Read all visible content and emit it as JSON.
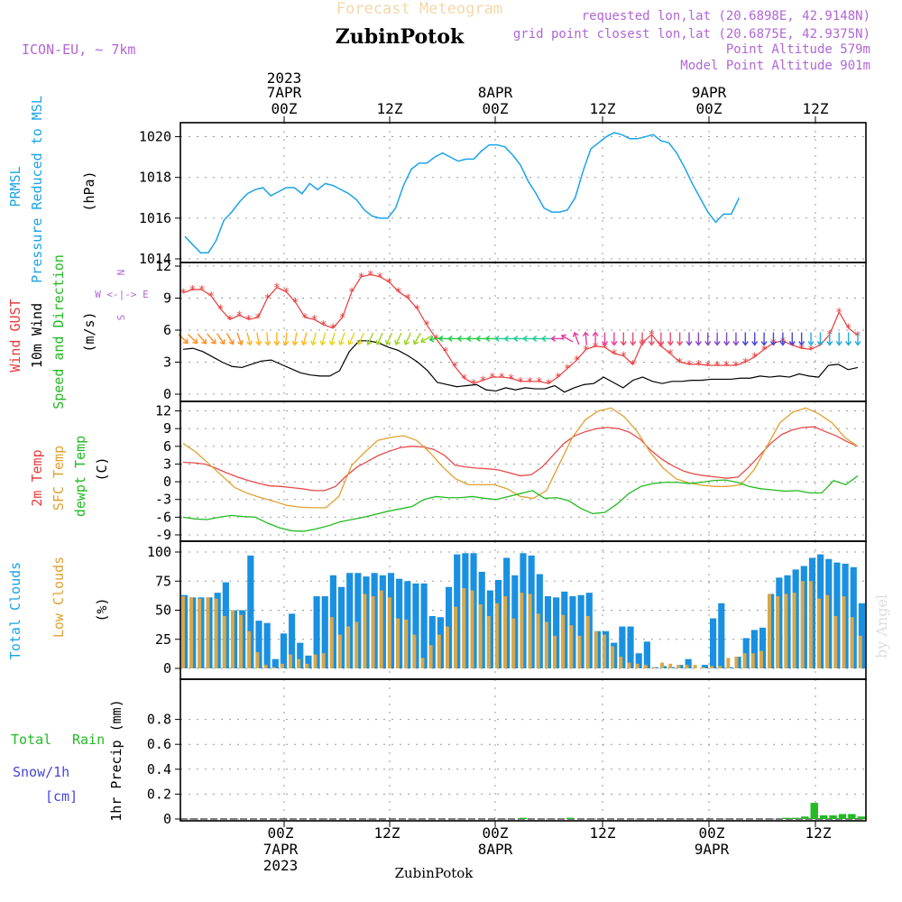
{
  "header": {
    "title_faint": "Forecast Meteogram",
    "location": "ZubinPotok",
    "model": "ICON-EU, ~ 7km",
    "requested": "requested lon,lat (20.6898E, 42.9148N)",
    "closest": "grid point closest lon,lat (20.6875E, 42.9375N)",
    "altitude": "Point Altitude 579m",
    "model_altitude": "Model Point Altitude 901m"
  },
  "top_axis": {
    "year": "2023",
    "dates": [
      "7APR",
      "8APR",
      "9APR"
    ],
    "hours": [
      "00Z",
      "12Z",
      "00Z",
      "12Z",
      "00Z",
      "12Z"
    ]
  },
  "bottom_axis": {
    "hours": [
      "00Z",
      "12Z",
      "00Z",
      "12Z",
      "00Z",
      "12Z"
    ],
    "dates": [
      "7APR",
      "8APR",
      "9APR"
    ],
    "year": "2023"
  },
  "footer": {
    "location": "ZubinPotok",
    "credit": "by Angel"
  },
  "colors": {
    "pressure": "#1aa3e8",
    "gust": "#e83a3a",
    "wind": "#000000",
    "t2m": "#e84a4a",
    "sfc": "#e0a030",
    "dew": "#22bb22",
    "cloud_total": "#1a90e0",
    "cloud_low": "#d8a848",
    "rain": "#22bb22",
    "label_purple": "#b066d6"
  },
  "panels": {
    "pressure": {
      "labels": [
        "PRMSL",
        "Pressure Reduced to MSL",
        "(hPa)"
      ],
      "ticks": [
        "1020",
        "1018",
        "1016",
        "1014"
      ]
    },
    "wind": {
      "labels": [
        "Wind GUST",
        "10m Wind",
        "Speed and Direction",
        "(m/s)"
      ],
      "compass": [
        "N",
        "W <-|-> E",
        "S"
      ],
      "ticks": [
        "12",
        "9",
        "6",
        "3",
        "0"
      ]
    },
    "temp": {
      "labels": [
        "2m Temp",
        "SFC Temp",
        "dewpt Temp",
        "(C)"
      ],
      "ticks": [
        "12",
        "9",
        "6",
        "3",
        "0",
        "-3",
        "-6",
        "-9"
      ]
    },
    "clouds": {
      "labels": [
        "Total Clouds",
        "Low Clouds",
        "(%)"
      ],
      "ticks": [
        "100",
        "75",
        "50",
        "25",
        "0"
      ]
    },
    "precip": {
      "labels": [
        "Total",
        "Rain",
        "Snow/1h",
        "[cm]",
        "1hr Precip (mm)"
      ],
      "ticks": [
        "0.8",
        "0.6",
        "0.4",
        "0.2",
        "0"
      ]
    }
  },
  "chart_data": {
    "type": "line",
    "x_unit": "hours from 2023-04-06 15Z (hourly)",
    "x_range": [
      0,
      64
    ],
    "pressure_hpa": {
      "ylim": [
        1014,
        1020.6
      ],
      "values": [
        1015.1,
        1014.7,
        1014.3,
        1014.3,
        1014.9,
        1015.9,
        1016.3,
        1016.8,
        1017.2,
        1017.4,
        1017.5,
        1017.1,
        1017.3,
        1017.5,
        1017.5,
        1017.2,
        1017.7,
        1017.4,
        1017.7,
        1017.6,
        1017.4,
        1017.2,
        1016.9,
        1016.4,
        1016.1,
        1016.0,
        1016.0,
        1016.5,
        1017.6,
        1018.4,
        1018.7,
        1018.7,
        1019.0,
        1019.2,
        1019.0,
        1018.8,
        1018.9,
        1018.9,
        1019.3,
        1019.6,
        1019.6,
        1019.5,
        1019.1,
        1018.6,
        1017.8,
        1017.2,
        1016.5,
        1016.3,
        1016.3,
        1016.4,
        1017.0,
        1018.3,
        1019.4,
        1019.7,
        1020.0,
        1020.2,
        1020.1,
        1019.9,
        1019.9,
        1020.0,
        1020.1,
        1019.8,
        1019.7,
        1019.2,
        1018.5,
        1017.7,
        1017.0,
        1016.3,
        1015.8,
        1016.2,
        1016.2,
        1017.0
      ]
    },
    "gust_ms": {
      "ylim": [
        0,
        12
      ],
      "values": [
        9.5,
        9.8,
        9.8,
        9.2,
        8.0,
        7.0,
        7.4,
        7.0,
        7.2,
        9.0,
        10.0,
        9.6,
        8.6,
        7.2,
        7.0,
        6.5,
        6.2,
        7.2,
        9.6,
        11.0,
        11.2,
        11.0,
        10.5,
        9.6,
        9.0,
        8.0,
        6.5,
        5.2,
        4.0,
        2.6,
        1.5,
        1.0,
        1.3,
        1.6,
        1.6,
        1.5,
        1.2,
        1.2,
        1.2,
        1.0,
        1.6,
        2.4,
        3.2,
        4.2,
        4.5,
        4.4,
        3.8,
        3.6,
        2.8,
        4.8,
        5.6,
        4.5,
        3.8,
        3.0,
        2.8,
        2.8,
        2.7,
        2.7,
        2.7,
        2.7,
        3.0,
        3.5,
        4.2,
        4.8,
        5.0,
        4.6,
        4.3,
        4.2,
        4.6,
        5.6,
        7.7,
        6.2,
        5.5
      ],
      "wind_speed_ms": [
        4.2,
        4.3,
        4.0,
        3.5,
        3.0,
        2.6,
        2.5,
        2.8,
        3.1,
        3.2,
        2.8,
        2.4,
        2.0,
        1.8,
        1.7,
        1.7,
        2.2,
        4.0,
        5.0,
        5.0,
        4.8,
        4.4,
        4.1,
        3.6,
        3.0,
        2.2,
        1.1,
        0.9,
        0.7,
        0.8,
        0.9,
        0.4,
        0.3,
        0.6,
        0.4,
        0.6,
        0.5,
        0.5,
        0.8,
        0.2,
        0.6,
        0.9,
        1.0,
        1.6,
        1.1,
        0.6,
        1.3,
        1.6,
        1.2,
        1.0,
        1.2,
        1.2,
        1.3,
        1.3,
        1.4,
        1.4,
        1.4,
        1.5,
        1.5,
        1.7,
        1.6,
        1.7,
        1.6,
        1.9,
        1.7,
        1.6,
        2.7,
        2.8,
        2.3,
        2.5
      ],
      "arrow_dir_deg": [
        315,
        315,
        320,
        320,
        325,
        330,
        340,
        345,
        350,
        355,
        0,
        5,
        10,
        15,
        15,
        15,
        15,
        20,
        25,
        25,
        25,
        25,
        25,
        25,
        25,
        30,
        60,
        80,
        90,
        90,
        90,
        90,
        90,
        90,
        90,
        90,
        90,
        90,
        90,
        90,
        90,
        120,
        160,
        175,
        180,
        0,
        0,
        0,
        0,
        0,
        0,
        0,
        0,
        0,
        0,
        0,
        0,
        0,
        0,
        0,
        0,
        0,
        0,
        0,
        0,
        0,
        0,
        0,
        0,
        0,
        0,
        0,
        0
      ]
    },
    "temp_c": {
      "ylim": [
        -9,
        13
      ],
      "t2m": [
        3.3,
        3.2,
        3.0,
        2.3,
        1.5,
        0.8,
        0.2,
        -0.3,
        -0.7,
        -0.8,
        -1.0,
        -1.2,
        -1.5,
        -1.5,
        -0.8,
        1.0,
        2.5,
        3.5,
        4.5,
        5.2,
        5.8,
        6.0,
        5.9,
        5.5,
        4.5,
        2.8,
        2.5,
        2.3,
        2.2,
        2.0,
        1.5,
        1.0,
        1.2,
        2.5,
        4.5,
        6.5,
        7.8,
        8.5,
        9.0,
        9.2,
        9.0,
        8.4,
        7.2,
        5.3,
        3.8,
        2.7,
        1.8,
        1.3,
        1.0,
        0.8,
        0.6,
        0.8,
        2.5,
        4.5,
        6.5,
        8.0,
        8.8,
        9.2,
        9.3,
        8.5,
        7.8,
        6.8,
        6.0
      ],
      "sfc": [
        6.5,
        5.0,
        3.0,
        1.0,
        -1.0,
        -2.0,
        -2.7,
        -3.3,
        -4.0,
        -4.3,
        -4.4,
        -4.4,
        -2.5,
        2.8,
        5.0,
        7.0,
        7.5,
        7.8,
        7.0,
        5.0,
        2.5,
        0.5,
        -0.5,
        -0.5,
        -0.5,
        -1.2,
        -2.5,
        -2.8,
        -1.5,
        3.0,
        7.5,
        10.5,
        12.0,
        12.5,
        11.0,
        8.5,
        5.0,
        2.3,
        0.5,
        -0.2,
        -0.6,
        -0.8,
        -0.8,
        -0.5,
        2.0,
        6.0,
        10.0,
        11.8,
        12.5,
        11.5,
        10.0,
        7.5,
        6.0
      ],
      "dewpt": [
        -6.0,
        -6.3,
        -6.4,
        -6.0,
        -5.7,
        -5.9,
        -6.0,
        -7.0,
        -7.8,
        -8.3,
        -8.4,
        -8.0,
        -7.5,
        -6.8,
        -6.4,
        -6.0,
        -5.5,
        -5.0,
        -4.6,
        -4.2,
        -3.0,
        -2.5,
        -2.7,
        -2.7,
        -2.5,
        -2.8,
        -3.0,
        -2.5,
        -2.0,
        -1.5,
        -2.8,
        -2.7,
        -3.2,
        -4.5,
        -5.4,
        -5.2,
        -3.8,
        -2.0,
        -0.8,
        -0.3,
        -0.1,
        -0.1,
        -0.3,
        -0.1,
        0.2,
        0.3,
        -0.1,
        -0.8,
        -1.2,
        -1.4,
        -1.6,
        -1.5,
        -1.9,
        -1.9,
        0.2,
        -0.5,
        1.0
      ]
    },
    "clouds_pct": {
      "ylim": [
        0,
        100
      ],
      "total": [
        63,
        61,
        61,
        61,
        65,
        74,
        50,
        50,
        97,
        41,
        39,
        8,
        30,
        47,
        22,
        11,
        62,
        62,
        80,
        70,
        82,
        82,
        79,
        82,
        80,
        82,
        77,
        75,
        73,
        73,
        45,
        44,
        70,
        98,
        99,
        99,
        83,
        67,
        76,
        95,
        80,
        99,
        97,
        81,
        62,
        61,
        66,
        62,
        63,
        65,
        32,
        32,
        22,
        36,
        36,
        13,
        23,
        1,
        2,
        1,
        3,
        8,
        0,
        3,
        43,
        56,
        1,
        10,
        26,
        33,
        35,
        64,
        78,
        80,
        85,
        88,
        95,
        98,
        94,
        91,
        90,
        87,
        56
      ],
      "low": [
        62,
        61,
        60,
        61,
        60,
        45,
        50,
        46,
        32,
        14,
        3,
        1,
        4,
        12,
        8,
        4,
        12,
        13,
        44,
        29,
        36,
        40,
        64,
        62,
        67,
        61,
        43,
        42,
        29,
        9,
        20,
        29,
        36,
        53,
        69,
        67,
        55,
        45,
        56,
        62,
        43,
        65,
        64,
        47,
        40,
        28,
        46,
        37,
        28,
        45,
        32,
        29,
        19,
        10,
        5,
        4,
        3,
        1,
        5,
        4,
        3,
        3,
        3,
        1,
        2,
        2,
        9,
        10,
        13,
        13,
        15,
        64,
        62,
        64,
        65,
        75,
        75,
        60,
        63,
        45,
        62,
        44,
        28,
        38
      ]
    },
    "precip_mm": {
      "ylim": [
        0,
        1
      ],
      "rain": [
        0,
        0,
        0,
        0,
        0,
        0,
        0,
        0,
        0,
        0,
        0,
        0,
        0,
        0,
        0,
        0,
        0,
        0,
        0,
        0,
        0,
        0,
        0,
        0,
        0,
        0,
        0,
        0,
        0,
        0,
        0,
        0,
        0,
        0,
        0,
        0,
        0.01,
        0,
        0,
        0,
        0,
        0.01,
        0,
        0,
        0,
        0,
        0,
        0,
        0,
        0,
        0,
        0,
        0,
        0,
        0,
        0,
        0,
        0,
        0,
        0,
        0,
        0,
        0,
        0,
        0.01,
        0.01,
        0.02,
        0.13,
        0.03,
        0.03,
        0.04,
        0.04,
        0.02
      ]
    }
  }
}
